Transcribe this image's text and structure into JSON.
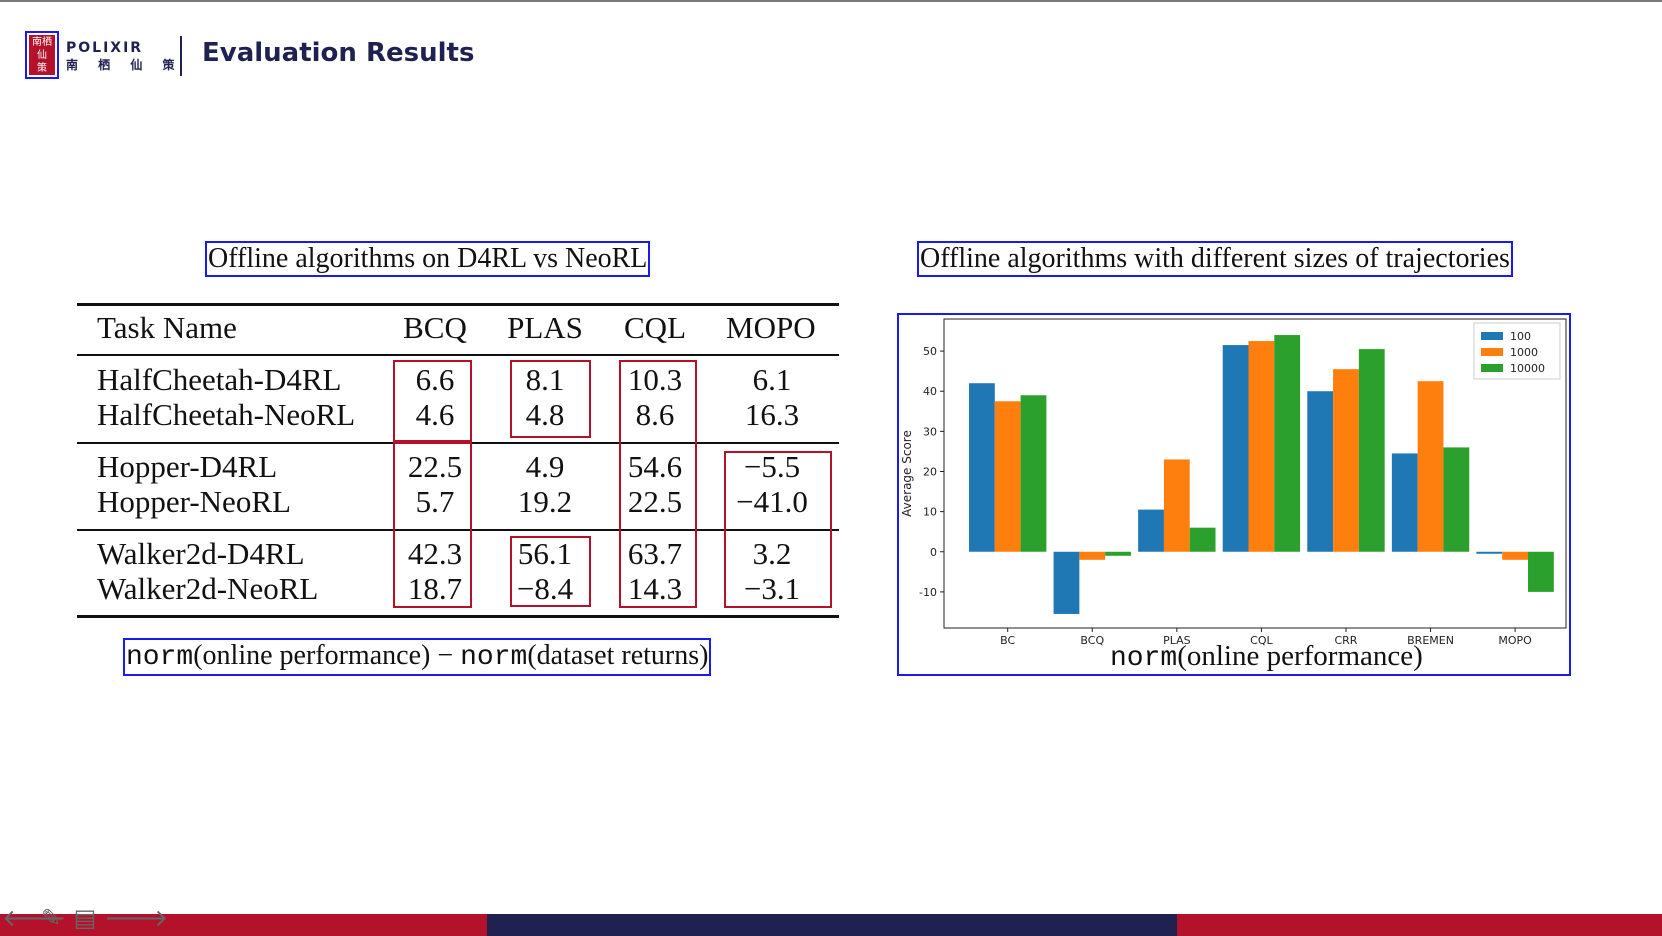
{
  "header": {
    "logo_seal_text": "南栖仙策",
    "brand_en": "POLIXIR",
    "brand_cn": "南 栖 仙 策",
    "title": "Evaluation Results"
  },
  "left_panel": {
    "caption": "Offline algorithms on D4RL vs NeoRL",
    "table": {
      "columns": [
        "Task Name",
        "BCQ",
        "PLAS",
        "CQL",
        "MOPO"
      ],
      "rows": [
        {
          "task": "HalfCheetah-D4RL",
          "bcq": "6.6",
          "plas": "8.1",
          "cql": "10.3",
          "mopo": "6.1"
        },
        {
          "task": "HalfCheetah-NeoRL",
          "bcq": "4.6",
          "plas": "4.8",
          "cql": "8.6",
          "mopo": "16.3"
        },
        {
          "task": "Hopper-D4RL",
          "bcq": "22.5",
          "plas": "4.9",
          "cql": "54.6",
          "mopo": "−5.5"
        },
        {
          "task": "Hopper-NeoRL",
          "bcq": "5.7",
          "plas": "19.2",
          "cql": "22.5",
          "mopo": "−41.0"
        },
        {
          "task": "Walker2d-D4RL",
          "bcq": "42.3",
          "plas": "56.1",
          "cql": "63.7",
          "mopo": "3.2"
        },
        {
          "task": "Walker2d-NeoRL",
          "bcq": "18.7",
          "plas": "−8.4",
          "cql": "14.3",
          "mopo": "−3.1"
        }
      ]
    },
    "formula": {
      "norm1": "norm",
      "part1": "(online performance) − ",
      "norm2": "norm",
      "part2": "(dataset returns)"
    }
  },
  "right_panel": {
    "caption": "Offline algorithms with different sizes of trajectories",
    "xlabel_norm": "norm",
    "xlabel_rest": "(online performance)"
  },
  "colors": {
    "accent_blue": "#1a1aee",
    "box_red": "#b3122a",
    "navy": "#1f2150",
    "series_100": "#1f77b4",
    "series_1000": "#ff7f0e",
    "series_10000": "#2ca02c"
  },
  "icons": [
    "arrow-left-icon",
    "pen-icon",
    "menu-icon",
    "arrow-right-icon"
  ],
  "chart_data": {
    "type": "bar",
    "categories": [
      "BC",
      "BCQ",
      "PLAS",
      "CQL",
      "CRR",
      "BREMEN",
      "MOPO"
    ],
    "series": [
      {
        "name": "100",
        "values": [
          42,
          -15.5,
          10.5,
          51.5,
          40,
          24.5,
          -0.5
        ]
      },
      {
        "name": "1000",
        "values": [
          37.5,
          -2,
          23,
          52.5,
          45.5,
          42.5,
          -2
        ]
      },
      {
        "name": "10000",
        "values": [
          39,
          -1,
          6,
          54,
          50.5,
          26,
          -10
        ]
      }
    ],
    "ylabel": "Average Score",
    "xlabel": "",
    "ylim": [
      -19,
      58
    ],
    "yticks": [
      -10,
      0,
      10,
      20,
      30,
      40,
      50
    ],
    "legend": "top-right",
    "grid": false
  }
}
